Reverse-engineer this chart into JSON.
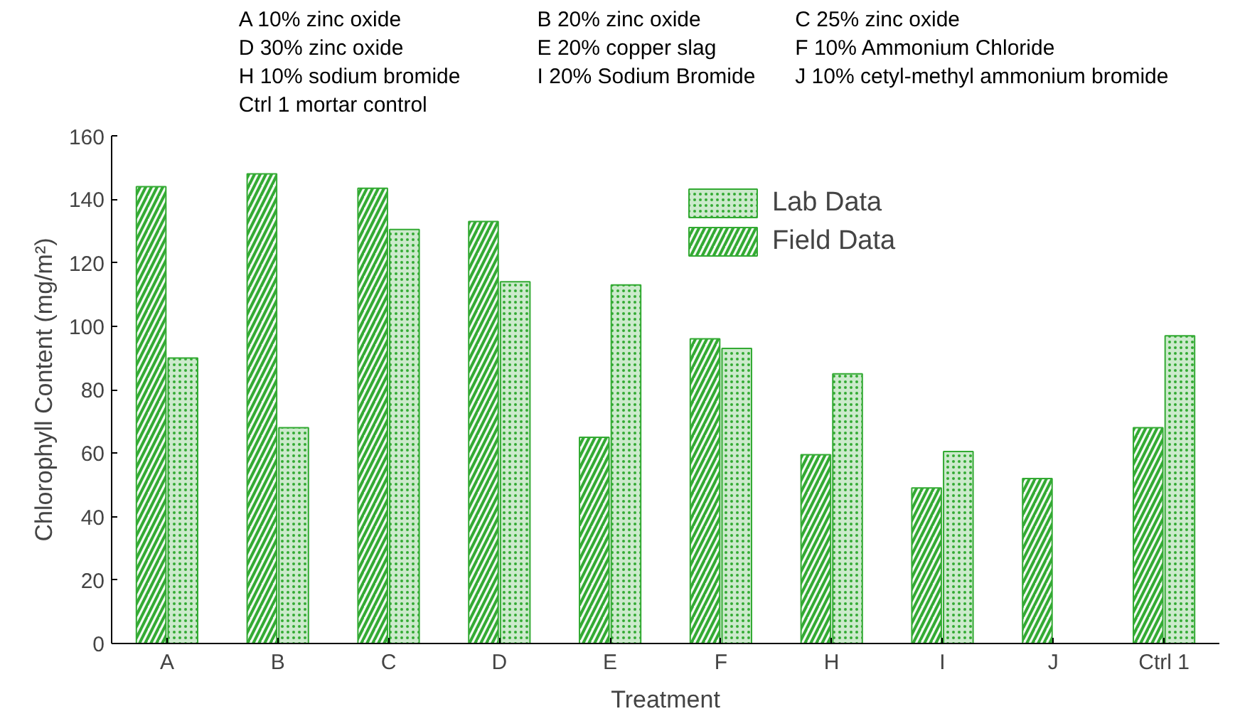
{
  "chart_data": {
    "type": "bar",
    "xlabel": "Treatment",
    "ylabel": "Chlorophyll Content (mg/m²)",
    "categories": [
      "A",
      "B",
      "C",
      "D",
      "E",
      "F",
      "H",
      "I",
      "J",
      "Ctrl 1"
    ],
    "series": [
      {
        "name": "Field Data",
        "color": "#33aa33",
        "values": [
          144,
          148,
          143.5,
          133,
          65,
          96,
          59.5,
          49,
          52,
          68
        ]
      },
      {
        "name": "Lab Data",
        "color": "#33aa33",
        "values": [
          90,
          68,
          130.5,
          114,
          113,
          93,
          85,
          60.5,
          null,
          97
        ]
      }
    ],
    "ylim": [
      0,
      160
    ],
    "yticks": [
      0,
      20,
      40,
      60,
      80,
      100,
      120,
      140,
      160
    ],
    "grid": false,
    "legend": "top right",
    "annotations": [
      "A    10% zinc oxide",
      "B    20% zinc oxide",
      "C    25% zinc oxide",
      "D    30% zinc oxide",
      "E    20% copper slag",
      "F    10% Ammonium Chloride",
      "H    10% sodium bromide",
      "I     20% Sodium Bromide",
      "J    10% cetyl-methyl ammonium bromide",
      "Ctrl 1    mortar control"
    ]
  }
}
